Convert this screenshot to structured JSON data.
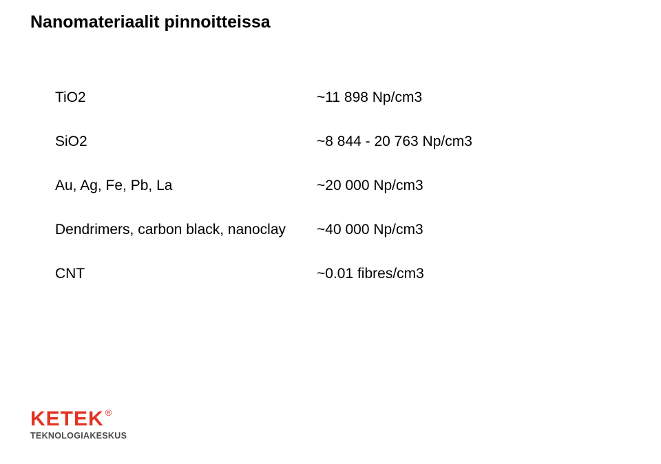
{
  "title": "Nanomateriaalit pinnoitteissa",
  "rows": [
    {
      "label": "TiO2",
      "value": "~11 898 Np/cm3"
    },
    {
      "label": "SiO2",
      "value": "~8 844 - 20 763 Np/cm3"
    },
    {
      "label": "Au, Ag, Fe, Pb, La",
      "value": "~20 000 Np/cm3"
    },
    {
      "label": "Dendrimers, carbon black, nanoclay",
      "value": "~40 000 Np/cm3"
    },
    {
      "label": "CNT",
      "value": "~0.01 fibres/cm3"
    }
  ],
  "logo": {
    "name": "KETEK",
    "registered": "®",
    "subtitle": "TEKNOLOGIAKESKUS",
    "brand_color": "#e23323",
    "sub_color": "#4a4a4a"
  },
  "style": {
    "title_fontsize": 25,
    "title_fontweight": "bold",
    "body_fontsize": 21,
    "row_gap": 40,
    "label_col_width": 380,
    "background_color": "#ffffff",
    "text_color": "#000000"
  }
}
